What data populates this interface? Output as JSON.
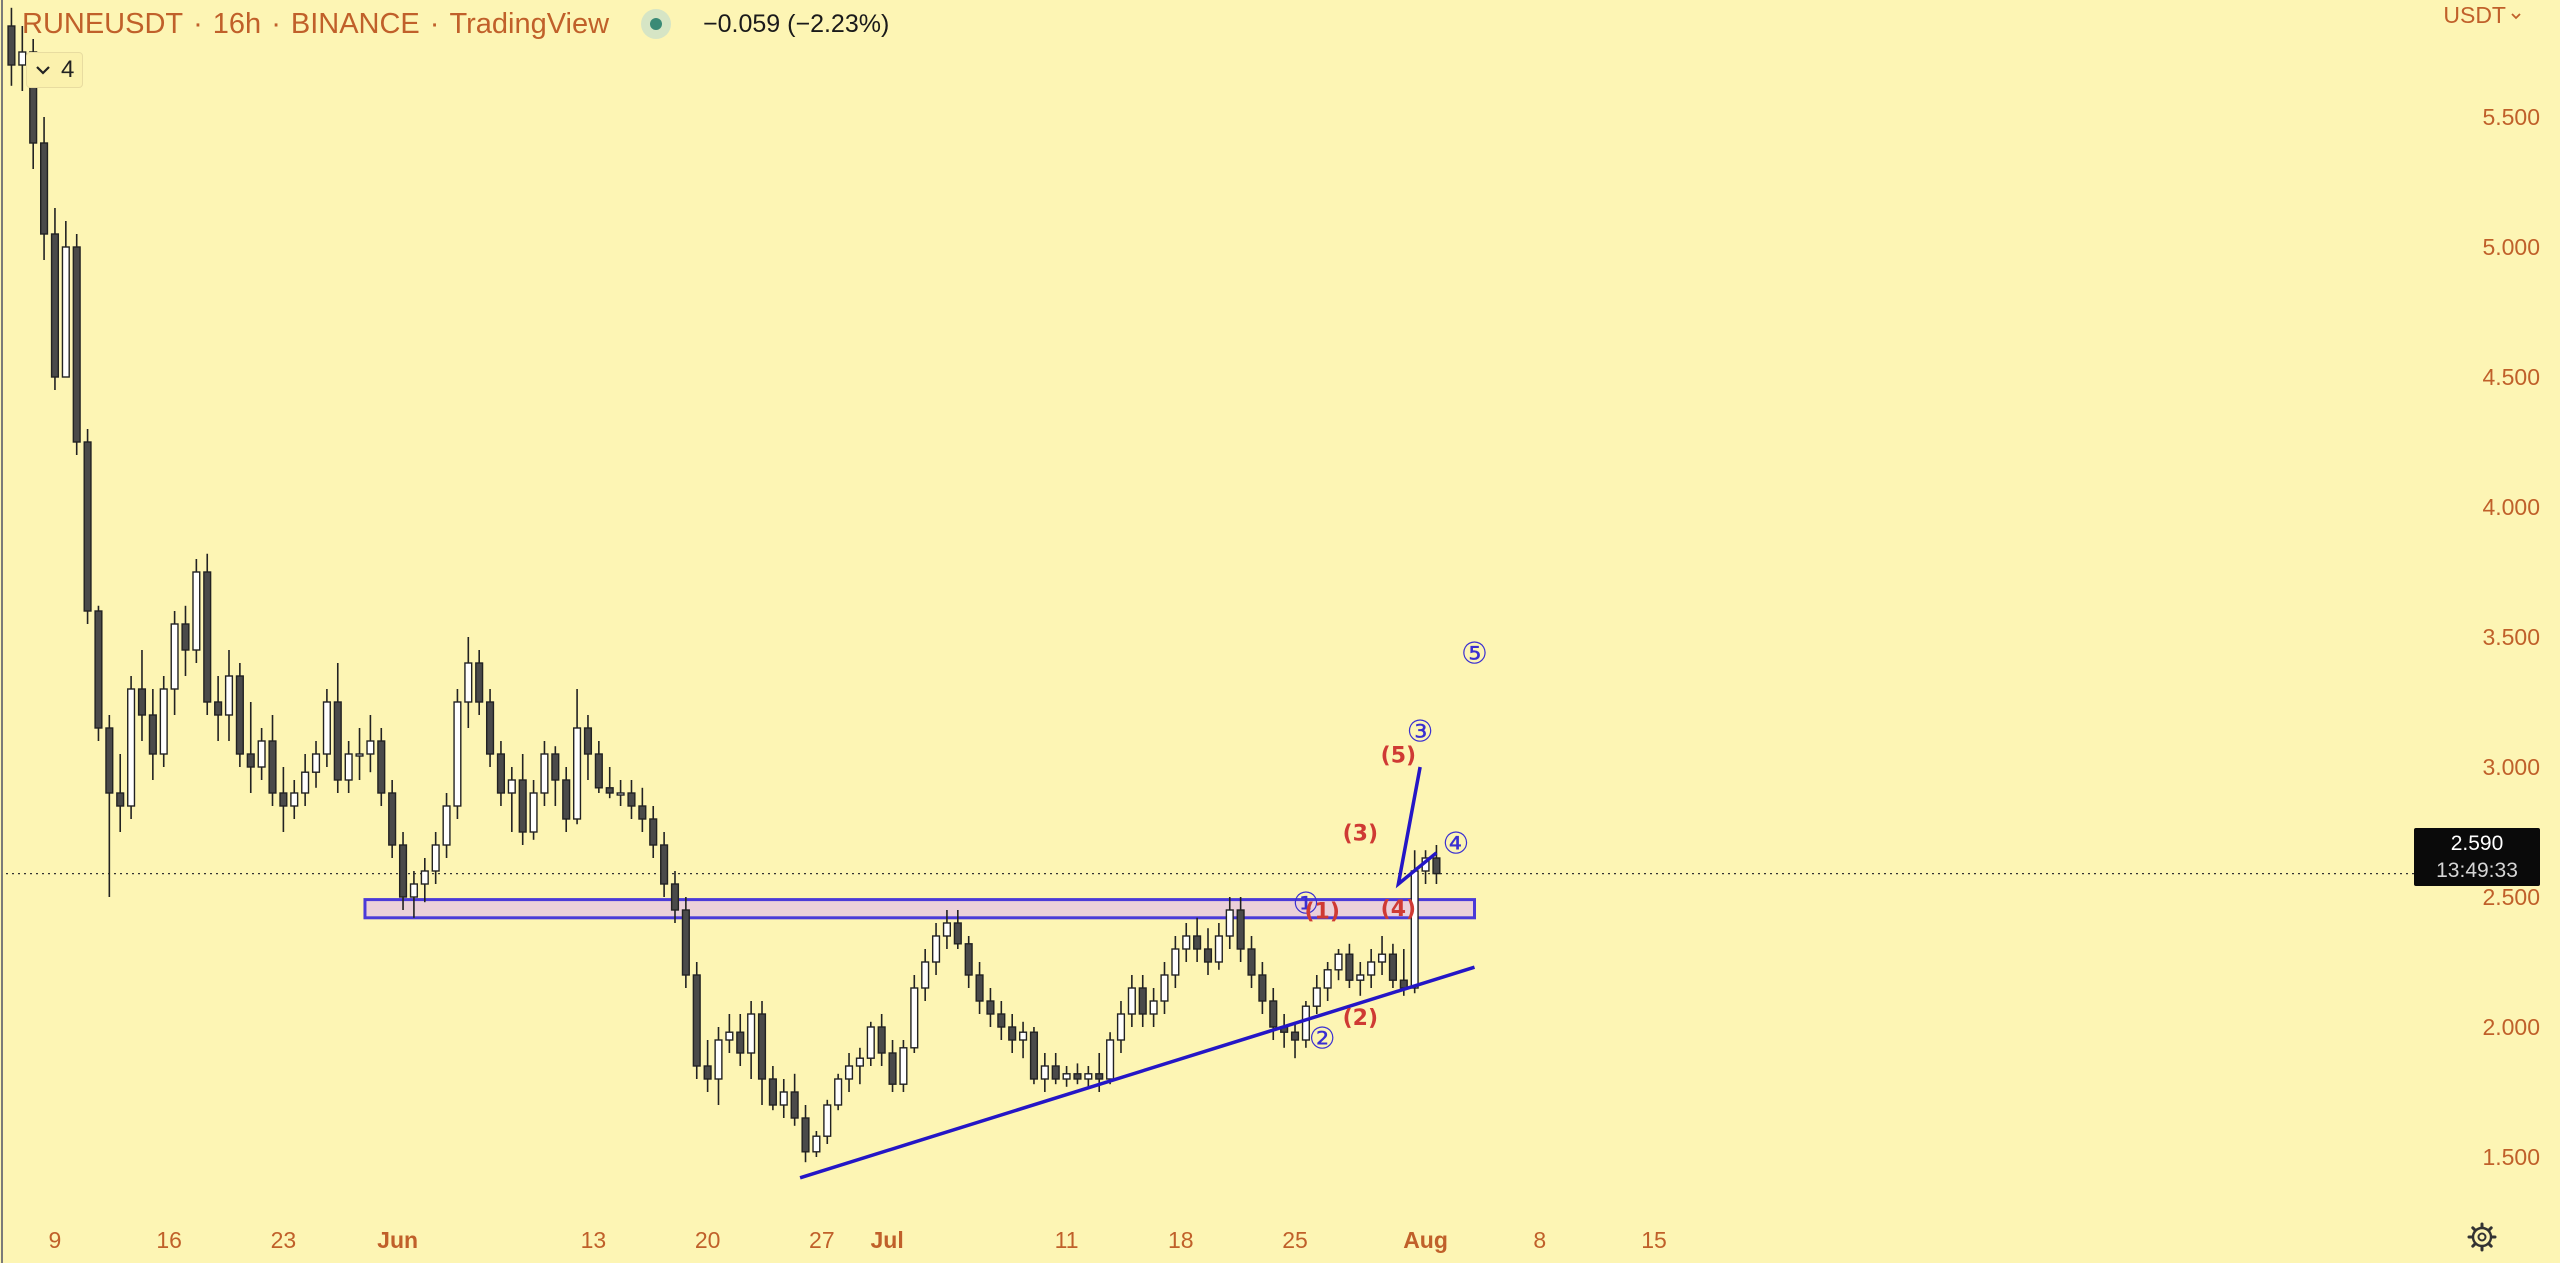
{
  "header": {
    "symbol": "RUNEUSDT",
    "interval": "16h",
    "exchange": "BINANCE",
    "source": "TradingView",
    "change": "−0.059 (−2.23%)",
    "indicator_count": "4",
    "currency": "USDT"
  },
  "price_label": {
    "price": "2.590",
    "countdown": "13:49:33"
  },
  "chart_data": {
    "type": "candlestick",
    "title": "RUNEUSDT · 16h · BINANCE · TradingView",
    "ylim": [
      1.25,
      5.95
    ],
    "xlim": [
      0,
      221
    ],
    "y_ticks": [
      {
        "value": 5.5,
        "label": "5.500"
      },
      {
        "value": 5.0,
        "label": "5.000"
      },
      {
        "value": 4.5,
        "label": "4.500"
      },
      {
        "value": 4.0,
        "label": "4.000"
      },
      {
        "value": 3.5,
        "label": "3.500"
      },
      {
        "value": 3.0,
        "label": "3.000"
      },
      {
        "value": 2.5,
        "label": "2.500"
      },
      {
        "value": 2.0,
        "label": "2.000"
      },
      {
        "value": 1.5,
        "label": "1.500"
      }
    ],
    "x_ticks": [
      {
        "x": 4.5,
        "label": "9",
        "bold": false
      },
      {
        "x": 15,
        "label": "16",
        "bold": false
      },
      {
        "x": 25.5,
        "label": "23",
        "bold": false
      },
      {
        "x": 36,
        "label": "Jun",
        "bold": true
      },
      {
        "x": 54,
        "label": "13",
        "bold": false
      },
      {
        "x": 64.5,
        "label": "20",
        "bold": false
      },
      {
        "x": 75,
        "label": "27",
        "bold": false
      },
      {
        "x": 81,
        "label": "Jul",
        "bold": true
      },
      {
        "x": 97.5,
        "label": "11",
        "bold": false
      },
      {
        "x": 108,
        "label": "18",
        "bold": false
      },
      {
        "x": 118.5,
        "label": "25",
        "bold": false
      },
      {
        "x": 130.5,
        "label": "Aug",
        "bold": true
      },
      {
        "x": 141,
        "label": "8",
        "bold": false
      },
      {
        "x": 151.5,
        "label": "15",
        "bold": false
      }
    ],
    "current_price": 2.59,
    "up_color": "#ffffff",
    "down_color": "#4a4a4a",
    "candles": [
      [
        5.85,
        5.92,
        5.62,
        5.7
      ],
      [
        5.7,
        5.85,
        5.6,
        5.75
      ],
      [
        5.75,
        5.8,
        5.3,
        5.4
      ],
      [
        5.4,
        5.5,
        4.95,
        5.05
      ],
      [
        5.05,
        5.15,
        4.45,
        4.5
      ],
      [
        4.5,
        5.1,
        4.5,
        5.0
      ],
      [
        5.0,
        5.05,
        4.2,
        4.25
      ],
      [
        4.25,
        4.3,
        3.55,
        3.6
      ],
      [
        3.6,
        3.62,
        3.1,
        3.15
      ],
      [
        3.15,
        3.2,
        2.5,
        2.9
      ],
      [
        2.9,
        3.05,
        2.75,
        2.85
      ],
      [
        2.85,
        3.35,
        2.8,
        3.3
      ],
      [
        3.3,
        3.45,
        3.1,
        3.2
      ],
      [
        3.2,
        3.3,
        2.95,
        3.05
      ],
      [
        3.05,
        3.35,
        3.0,
        3.3
      ],
      [
        3.3,
        3.6,
        3.2,
        3.55
      ],
      [
        3.55,
        3.62,
        3.35,
        3.45
      ],
      [
        3.45,
        3.8,
        3.4,
        3.75
      ],
      [
        3.75,
        3.82,
        3.2,
        3.25
      ],
      [
        3.25,
        3.35,
        3.1,
        3.2
      ],
      [
        3.2,
        3.45,
        3.1,
        3.35
      ],
      [
        3.35,
        3.4,
        3.0,
        3.05
      ],
      [
        3.05,
        3.25,
        2.9,
        3.0
      ],
      [
        3.0,
        3.15,
        2.95,
        3.1
      ],
      [
        3.1,
        3.2,
        2.85,
        2.9
      ],
      [
        2.9,
        3.0,
        2.75,
        2.85
      ],
      [
        2.85,
        2.95,
        2.8,
        2.9
      ],
      [
        2.9,
        3.05,
        2.85,
        2.98
      ],
      [
        2.98,
        3.1,
        2.92,
        3.05
      ],
      [
        3.05,
        3.3,
        3.0,
        3.25
      ],
      [
        3.25,
        3.4,
        2.9,
        2.95
      ],
      [
        2.95,
        3.1,
        2.9,
        3.05
      ],
      [
        3.05,
        3.15,
        2.95,
        3.05
      ],
      [
        3.05,
        3.2,
        2.98,
        3.1
      ],
      [
        3.1,
        3.15,
        2.85,
        2.9
      ],
      [
        2.9,
        2.95,
        2.65,
        2.7
      ],
      [
        2.7,
        2.75,
        2.45,
        2.5
      ],
      [
        2.5,
        2.6,
        2.42,
        2.55
      ],
      [
        2.55,
        2.65,
        2.48,
        2.6
      ],
      [
        2.6,
        2.75,
        2.55,
        2.7
      ],
      [
        2.7,
        2.9,
        2.65,
        2.85
      ],
      [
        2.85,
        3.3,
        2.8,
        3.25
      ],
      [
        3.25,
        3.5,
        3.15,
        3.4
      ],
      [
        3.4,
        3.45,
        3.2,
        3.25
      ],
      [
        3.25,
        3.3,
        3.0,
        3.05
      ],
      [
        3.05,
        3.1,
        2.85,
        2.9
      ],
      [
        2.9,
        3.0,
        2.75,
        2.95
      ],
      [
        2.95,
        3.05,
        2.7,
        2.75
      ],
      [
        2.75,
        2.95,
        2.72,
        2.9
      ],
      [
        2.9,
        3.1,
        2.85,
        3.05
      ],
      [
        3.05,
        3.08,
        2.85,
        2.95
      ],
      [
        2.95,
        3.0,
        2.75,
        2.8
      ],
      [
        2.8,
        3.3,
        2.78,
        3.15
      ],
      [
        3.15,
        3.2,
        2.95,
        3.05
      ],
      [
        3.05,
        3.1,
        2.9,
        2.92
      ],
      [
        2.92,
        3.0,
        2.88,
        2.9
      ],
      [
        2.9,
        2.95,
        2.85,
        2.9
      ],
      [
        2.9,
        2.95,
        2.8,
        2.85
      ],
      [
        2.85,
        2.92,
        2.75,
        2.8
      ],
      [
        2.8,
        2.85,
        2.65,
        2.7
      ],
      [
        2.7,
        2.75,
        2.5,
        2.55
      ],
      [
        2.55,
        2.6,
        2.4,
        2.45
      ],
      [
        2.45,
        2.5,
        2.15,
        2.2
      ],
      [
        2.2,
        2.25,
        1.8,
        1.85
      ],
      [
        1.85,
        1.95,
        1.75,
        1.8
      ],
      [
        1.8,
        2.0,
        1.7,
        1.95
      ],
      [
        1.95,
        2.05,
        1.9,
        1.98
      ],
      [
        1.98,
        2.05,
        1.85,
        1.9
      ],
      [
        1.9,
        2.1,
        1.8,
        2.05
      ],
      [
        2.05,
        2.1,
        1.7,
        1.8
      ],
      [
        1.8,
        1.85,
        1.68,
        1.7
      ],
      [
        1.7,
        1.8,
        1.65,
        1.75
      ],
      [
        1.75,
        1.82,
        1.62,
        1.65
      ],
      [
        1.65,
        1.7,
        1.48,
        1.52
      ],
      [
        1.52,
        1.6,
        1.5,
        1.58
      ],
      [
        1.58,
        1.72,
        1.55,
        1.7
      ],
      [
        1.7,
        1.82,
        1.68,
        1.8
      ],
      [
        1.8,
        1.9,
        1.75,
        1.85
      ],
      [
        1.85,
        1.92,
        1.78,
        1.88
      ],
      [
        1.88,
        2.02,
        1.85,
        2.0
      ],
      [
        2.0,
        2.05,
        1.85,
        1.9
      ],
      [
        1.9,
        1.95,
        1.75,
        1.78
      ],
      [
        1.78,
        1.95,
        1.75,
        1.92
      ],
      [
        1.92,
        2.2,
        1.9,
        2.15
      ],
      [
        2.15,
        2.3,
        2.1,
        2.25
      ],
      [
        2.25,
        2.4,
        2.2,
        2.35
      ],
      [
        2.35,
        2.45,
        2.3,
        2.4
      ],
      [
        2.4,
        2.45,
        2.3,
        2.32
      ],
      [
        2.32,
        2.35,
        2.15,
        2.2
      ],
      [
        2.2,
        2.25,
        2.05,
        2.1
      ],
      [
        2.1,
        2.15,
        2.0,
        2.05
      ],
      [
        2.05,
        2.1,
        1.95,
        2.0
      ],
      [
        2.0,
        2.05,
        1.9,
        1.95
      ],
      [
        1.95,
        2.02,
        1.88,
        1.98
      ],
      [
        1.98,
        2.0,
        1.78,
        1.8
      ],
      [
        1.8,
        1.9,
        1.75,
        1.85
      ],
      [
        1.85,
        1.9,
        1.78,
        1.8
      ],
      [
        1.8,
        1.85,
        1.77,
        1.82
      ],
      [
        1.82,
        1.86,
        1.78,
        1.8
      ],
      [
        1.8,
        1.85,
        1.77,
        1.82
      ],
      [
        1.82,
        1.9,
        1.75,
        1.8
      ],
      [
        1.8,
        1.98,
        1.78,
        1.95
      ],
      [
        1.95,
        2.1,
        1.9,
        2.05
      ],
      [
        2.05,
        2.2,
        2.0,
        2.15
      ],
      [
        2.15,
        2.2,
        2.0,
        2.05
      ],
      [
        2.05,
        2.15,
        2.0,
        2.1
      ],
      [
        2.1,
        2.25,
        2.05,
        2.2
      ],
      [
        2.2,
        2.35,
        2.15,
        2.3
      ],
      [
        2.3,
        2.4,
        2.25,
        2.35
      ],
      [
        2.35,
        2.42,
        2.25,
        2.3
      ],
      [
        2.3,
        2.38,
        2.2,
        2.25
      ],
      [
        2.25,
        2.4,
        2.22,
        2.35
      ],
      [
        2.35,
        2.5,
        2.3,
        2.45
      ],
      [
        2.45,
        2.5,
        2.25,
        2.3
      ],
      [
        2.3,
        2.35,
        2.15,
        2.2
      ],
      [
        2.2,
        2.25,
        2.05,
        2.1
      ],
      [
        2.1,
        2.15,
        1.95,
        2.0
      ],
      [
        2.0,
        2.05,
        1.92,
        1.98
      ],
      [
        1.98,
        2.02,
        1.88,
        1.95
      ],
      [
        1.95,
        2.1,
        1.92,
        2.08
      ],
      [
        2.08,
        2.2,
        2.05,
        2.15
      ],
      [
        2.15,
        2.25,
        2.1,
        2.22
      ],
      [
        2.22,
        2.3,
        2.18,
        2.28
      ],
      [
        2.28,
        2.32,
        2.15,
        2.18
      ],
      [
        2.18,
        2.25,
        2.12,
        2.2
      ],
      [
        2.2,
        2.3,
        2.15,
        2.25
      ],
      [
        2.25,
        2.35,
        2.2,
        2.28
      ],
      [
        2.28,
        2.32,
        2.15,
        2.18
      ],
      [
        2.18,
        2.3,
        2.12,
        2.15
      ],
      [
        2.15,
        2.68,
        2.13,
        2.6
      ],
      [
        2.6,
        2.68,
        2.55,
        2.65
      ],
      [
        2.65,
        2.7,
        2.55,
        2.59
      ]
    ],
    "zone": {
      "x_start": 33,
      "x_end": 135,
      "y_low": 2.42,
      "y_high": 2.49
    },
    "trendline": {
      "x1": 73,
      "y1": 1.42,
      "x2": 135,
      "y2": 2.23
    },
    "projection": [
      [
        128,
        2.55
      ],
      [
        130,
        3.0
      ]
    ],
    "wave_labels": [
      {
        "text": "①",
        "x": 119.5,
        "y": 2.47,
        "color": "#3a2fd1"
      },
      {
        "text": "②",
        "x": 121,
        "y": 1.95,
        "color": "#3a2fd1"
      },
      {
        "text": "③",
        "x": 130,
        "y": 3.13,
        "color": "#3a2fd1"
      },
      {
        "text": "④",
        "x": 133.3,
        "y": 2.7,
        "color": "#3a2fd1"
      },
      {
        "text": "⑤",
        "x": 135,
        "y": 3.43,
        "color": "#3a2fd1"
      },
      {
        "text": "(1)",
        "x": 121,
        "y": 2.44,
        "color": "#cf3a34"
      },
      {
        "text": "(2)",
        "x": 124.5,
        "y": 2.03,
        "color": "#cf3a34"
      },
      {
        "text": "(3)",
        "x": 124.5,
        "y": 2.74,
        "color": "#cf3a34"
      },
      {
        "text": "(4)",
        "x": 128,
        "y": 2.45,
        "color": "#cf3a34"
      },
      {
        "text": "(5)",
        "x": 128,
        "y": 3.04,
        "color": "#cf3a34"
      }
    ],
    "colors": {
      "background": "#fdf5b4",
      "axis_text": "#c0602a",
      "zone_fill": "#e7c9df",
      "zone_border": "#4a3ad8",
      "trend": "#2416c6",
      "candle_border": "#222222"
    }
  }
}
